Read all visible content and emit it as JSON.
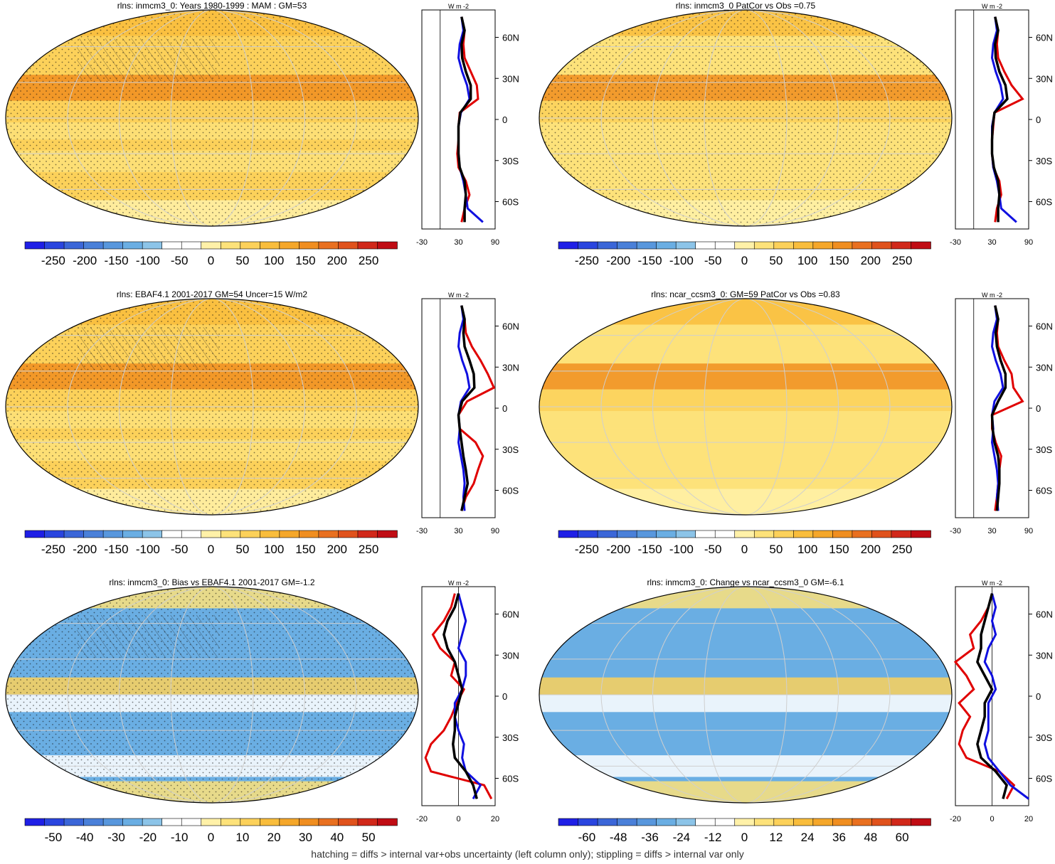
{
  "footer_note": "hatching = diffs > internal var+obs uncertainty (left column only); stippling = diffs > internal var only",
  "palettes": {
    "abs": [
      "#1f1fe6",
      "#2a45df",
      "#3b66d8",
      "#4a80d9",
      "#5897dd",
      "#6aaee3",
      "#8cc4e8",
      "#ffffff",
      "#ffffff",
      "#fff1a8",
      "#fde27a",
      "#fcd15a",
      "#f9bd3c",
      "#f5a72a",
      "#f08e20",
      "#e97020",
      "#e0521c",
      "#d1281a",
      "#c00c14"
    ],
    "diff": [
      "#1f1fe6",
      "#2a45df",
      "#3b66d8",
      "#4a80d9",
      "#5897dd",
      "#6aaee3",
      "#8cc4e8",
      "#ffffff",
      "#ffffff",
      "#fff1a8",
      "#fde27a",
      "#fcd15a",
      "#f9bd3c",
      "#f5a72a",
      "#f08e20",
      "#e97020",
      "#e0521c",
      "#d1281a",
      "#c00c14"
    ]
  },
  "line_colors": {
    "model": "#e00000",
    "obs": "#1010e0",
    "mean": "#000000"
  },
  "zonal_unit": "W m",
  "zonal_unit_sup": "-2",
  "lat_ticks": [
    "60N",
    "30N",
    "0",
    "30S",
    "60S"
  ],
  "chart_data": [
    {
      "type": "heatmap",
      "title": "rlns: inmcm3_0: Years 1980-1999 : MAM : GM=53",
      "colorbar_labels": [
        "-250",
        "-200",
        "-150",
        "-100",
        "-50",
        "0",
        "50",
        "100",
        "150",
        "200",
        "250"
      ],
      "zonal_x_ticks": [
        "-30",
        "30",
        "90"
      ],
      "zonal_xlim": [
        -30,
        90
      ],
      "dominant_level": 11,
      "zonal_lat": [
        -75,
        -65,
        -55,
        -45,
        -35,
        -25,
        -15,
        -5,
        5,
        15,
        25,
        35,
        45,
        55,
        65,
        75
      ],
      "zonal_model": [
        35,
        40,
        48,
        42,
        30,
        28,
        30,
        30,
        32,
        62,
        60,
        50,
        40,
        38,
        40,
        35
      ],
      "zonal_obs": [
        70,
        45,
        42,
        38,
        32,
        30,
        30,
        30,
        34,
        48,
        44,
        36,
        30,
        32,
        38,
        35
      ],
      "zonal_mean": [
        40,
        40,
        42,
        40,
        32,
        30,
        30,
        30,
        33,
        50,
        50,
        42,
        36,
        35,
        40,
        35
      ]
    },
    {
      "type": "heatmap",
      "title": "rlns: inmcm3_0 PatCor vs Obs =0.75",
      "colorbar_labels": [
        "-250",
        "-200",
        "-150",
        "-100",
        "-50",
        "0",
        "50",
        "100",
        "150",
        "200",
        "250"
      ],
      "zonal_x_ticks": [
        "-30",
        "30",
        "90"
      ],
      "zonal_xlim": [
        -30,
        90
      ],
      "dominant_level": 10,
      "zonal_lat": [
        -75,
        -65,
        -55,
        -45,
        -35,
        -25,
        -15,
        -5,
        5,
        15,
        25,
        35,
        45,
        55,
        65,
        75
      ],
      "zonal_model": [
        35,
        38,
        45,
        42,
        32,
        30,
        30,
        32,
        34,
        80,
        62,
        50,
        40,
        38,
        40,
        35
      ],
      "zonal_obs": [
        70,
        45,
        42,
        38,
        32,
        30,
        30,
        30,
        34,
        48,
        44,
        36,
        30,
        32,
        38,
        35
      ],
      "zonal_mean": [
        40,
        40,
        42,
        40,
        33,
        30,
        30,
        31,
        34,
        55,
        52,
        42,
        36,
        35,
        40,
        35
      ]
    },
    {
      "type": "heatmap",
      "title": "rlns: EBAF4.1 2001-2017 GM=54 Uncer=15 W/m2",
      "colorbar_labels": [
        "-250",
        "-200",
        "-150",
        "-100",
        "-50",
        "0",
        "50",
        "100",
        "150",
        "200",
        "250"
      ],
      "zonal_x_ticks": [
        "-30",
        "30",
        "90"
      ],
      "zonal_xlim": [
        -30,
        90
      ],
      "dominant_level": 11,
      "zonal_lat": [
        -75,
        -65,
        -55,
        -45,
        -35,
        -25,
        -15,
        -5,
        5,
        15,
        25,
        35,
        45,
        55,
        65,
        75
      ],
      "zonal_model": [
        35,
        42,
        55,
        62,
        70,
        58,
        32,
        30,
        44,
        88,
        78,
        66,
        52,
        42,
        40,
        35
      ],
      "zonal_obs": [
        40,
        38,
        40,
        38,
        34,
        30,
        32,
        30,
        34,
        48,
        44,
        36,
        30,
        32,
        38,
        35
      ],
      "zonal_mean": [
        35,
        40,
        45,
        42,
        38,
        35,
        32,
        30,
        36,
        56,
        55,
        48,
        40,
        38,
        40,
        35
      ]
    },
    {
      "type": "heatmap",
      "title": "rlns: ncar_ccsm3_0: GM=59 PatCor vs Obs =0.83",
      "colorbar_labels": [
        "-250",
        "-200",
        "-150",
        "-100",
        "-50",
        "0",
        "50",
        "100",
        "150",
        "200",
        "250"
      ],
      "zonal_x_ticks": [
        "-30",
        "30",
        "90"
      ],
      "zonal_xlim": [
        -30,
        90
      ],
      "dominant_level": 10,
      "zonal_lat": [
        -75,
        -65,
        -55,
        -45,
        -35,
        -25,
        -15,
        -5,
        5,
        15,
        25,
        35,
        45,
        55,
        65,
        75
      ],
      "zonal_model": [
        35,
        38,
        40,
        42,
        45,
        36,
        30,
        30,
        80,
        65,
        62,
        50,
        40,
        38,
        40,
        35
      ],
      "zonal_obs": [
        40,
        38,
        40,
        38,
        34,
        30,
        32,
        30,
        34,
        48,
        44,
        36,
        30,
        32,
        38,
        35
      ],
      "zonal_mean": [
        38,
        40,
        42,
        42,
        40,
        34,
        31,
        30,
        40,
        52,
        52,
        44,
        38,
        36,
        40,
        35
      ]
    },
    {
      "type": "heatmap",
      "title": "rlns: inmcm3_0: Bias vs EBAF4.1 2001-2017 GM=-1.2",
      "colorbar_labels": [
        "-50",
        "-40",
        "-30",
        "-20",
        "-10",
        "0",
        "10",
        "20",
        "30",
        "40",
        "50"
      ],
      "zonal_x_ticks": [
        "-20",
        "0",
        "20"
      ],
      "zonal_xlim": [
        -20,
        20
      ],
      "dominant_level": 5,
      "zonal_lat": [
        -75,
        -65,
        -55,
        -45,
        -35,
        -25,
        -15,
        -5,
        5,
        15,
        25,
        35,
        45,
        55,
        65,
        75
      ],
      "zonal_model": [
        18,
        14,
        -15,
        -18,
        -15,
        -8,
        -4,
        -1,
        3,
        -4,
        -2,
        -10,
        -14,
        -8,
        -4,
        -2
      ],
      "zonal_obs": [
        8,
        12,
        4,
        2,
        3,
        0,
        -2,
        -2,
        2,
        4,
        4,
        0,
        2,
        4,
        2,
        0
      ],
      "zonal_mean": [
        10,
        8,
        4,
        -2,
        -3,
        -2,
        -2,
        0,
        2,
        0,
        -2,
        -6,
        -8,
        -6,
        -2,
        0
      ]
    },
    {
      "type": "heatmap",
      "title": "rlns: inmcm3_0: Change vs ncar_ccsm3_0 GM=-6.1",
      "colorbar_labels": [
        "-60",
        "-48",
        "-36",
        "-24",
        "-12",
        "0",
        "12",
        "24",
        "36",
        "48",
        "60"
      ],
      "zonal_x_ticks": [
        "-20",
        "0",
        "20"
      ],
      "zonal_xlim": [
        -20,
        20
      ],
      "dominant_level": 5,
      "zonal_lat": [
        -75,
        -65,
        -55,
        -45,
        -35,
        -25,
        -15,
        -5,
        5,
        15,
        25,
        35,
        45,
        55,
        65,
        75
      ],
      "zonal_model": [
        8,
        12,
        4,
        -14,
        -18,
        -16,
        -12,
        -18,
        -10,
        -14,
        -20,
        -10,
        -12,
        -6,
        -2,
        0
      ],
      "zonal_obs": [
        20,
        10,
        4,
        -2,
        -4,
        -2,
        -2,
        -2,
        2,
        0,
        -4,
        -2,
        2,
        0,
        2,
        0
      ],
      "zonal_mean": [
        6,
        8,
        2,
        -6,
        -8,
        -6,
        -4,
        -4,
        0,
        -4,
        -8,
        -6,
        -6,
        -4,
        -2,
        0
      ]
    }
  ]
}
